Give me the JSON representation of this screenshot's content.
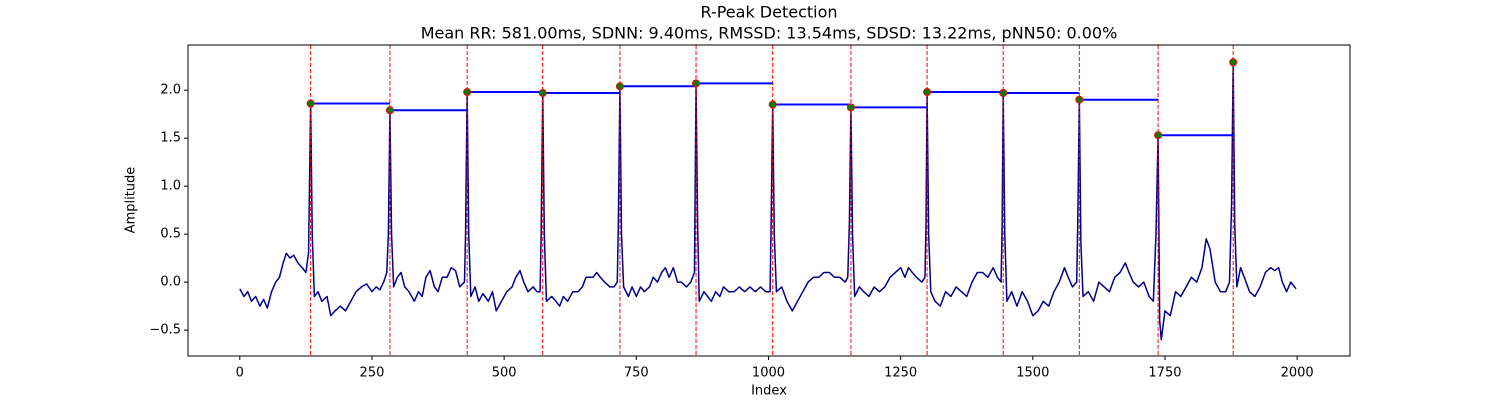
{
  "chart_data": {
    "type": "line",
    "title": "R-Peak Detection",
    "subtitle": "Mean RR: 581.00ms, SDNN: 9.40ms, RMSSD: 13.54ms, SDSD: 13.22ms, pNN50: 0.00%",
    "x_label": "Index",
    "y_label": "Amplitude",
    "xlim": [
      -98,
      2100
    ],
    "ylim": [
      -0.77,
      2.47
    ],
    "xticks": [
      0,
      250,
      500,
      750,
      1000,
      1250,
      1500,
      1750,
      2000
    ],
    "yticks": [
      {
        "value": -0.5,
        "label": "−0.5"
      },
      {
        "value": 0,
        "label": "0.0"
      },
      0.5,
      {
        "value": 1,
        "label": "1.0"
      },
      1.5,
      {
        "value": 2,
        "label": "2.0"
      }
    ],
    "series": [
      {
        "color": "#00008b",
        "x": [
          0,
          8,
          15,
          22,
          30,
          38,
          45,
          52,
          60,
          68,
          75,
          82,
          88,
          95,
          102,
          110,
          118,
          125,
          130,
          134,
          137,
          141,
          148,
          155,
          165,
          172,
          180,
          190,
          200,
          210,
          220,
          230,
          240,
          250,
          258,
          265,
          272,
          278,
          281,
          284,
          287,
          291,
          298,
          305,
          312,
          320,
          330,
          338,
          345,
          352,
          360,
          368,
          375,
          383,
          392,
          400,
          408,
          416,
          425,
          427,
          430,
          433,
          437,
          445,
          452,
          460,
          470,
          478,
          485,
          495,
          505,
          515,
          522,
          530,
          537,
          545,
          555,
          562,
          568,
          570,
          573,
          576,
          580,
          590,
          598,
          605,
          612,
          620,
          630,
          640,
          648,
          655,
          662,
          668,
          675,
          682,
          690,
          700,
          708,
          714,
          716,
          719,
          722,
          726,
          735,
          742,
          750,
          758,
          765,
          775,
          782,
          790,
          798,
          805,
          812,
          820,
          828,
          835,
          845,
          853,
          860,
          863,
          866,
          869,
          878,
          885,
          892,
          900,
          908,
          915,
          925,
          935,
          945,
          955,
          965,
          975,
          985,
          995,
          1003,
          1005,
          1008,
          1011,
          1015,
          1025,
          1035,
          1045,
          1055,
          1065,
          1075,
          1085,
          1095,
          1105,
          1115,
          1125,
          1135,
          1145,
          1150,
          1153,
          1156,
          1159,
          1163,
          1172,
          1180,
          1190,
          1200,
          1210,
          1220,
          1230,
          1240,
          1250,
          1258,
          1265,
          1272,
          1280,
          1290,
          1296,
          1298,
          1300,
          1303,
          1307,
          1315,
          1325,
          1335,
          1345,
          1355,
          1365,
          1375,
          1385,
          1395,
          1405,
          1415,
          1425,
          1433,
          1440,
          1442,
          1444,
          1447,
          1451,
          1460,
          1470,
          1480,
          1490,
          1500,
          1510,
          1520,
          1530,
          1540,
          1550,
          1560,
          1567,
          1575,
          1583,
          1585,
          1588,
          1591,
          1595,
          1605,
          1615,
          1625,
          1635,
          1645,
          1655,
          1665,
          1675,
          1682,
          1690,
          1700,
          1710,
          1720,
          1728,
          1733,
          1737,
          1740,
          1743,
          1750,
          1760,
          1770,
          1780,
          1790,
          1800,
          1810,
          1820,
          1828,
          1835,
          1845,
          1855,
          1865,
          1872,
          1876,
          1879,
          1882,
          1886,
          1893,
          1900,
          1910,
          1920,
          1930,
          1940,
          1950,
          1958,
          1965,
          1972,
          1980,
          1988,
          1995,
          1998
        ],
        "values": [
          -0.07,
          -0.15,
          -0.1,
          -0.2,
          -0.15,
          -0.25,
          -0.18,
          -0.27,
          -0.1,
          0.0,
          0.05,
          0.2,
          0.3,
          0.25,
          0.28,
          0.2,
          0.15,
          0.1,
          0.3,
          1.86,
          0.5,
          -0.15,
          -0.1,
          -0.2,
          -0.15,
          -0.35,
          -0.3,
          -0.25,
          -0.3,
          -0.2,
          -0.1,
          -0.05,
          -0.02,
          -0.1,
          -0.05,
          -0.08,
          0.0,
          0.1,
          0.5,
          1.79,
          0.5,
          -0.05,
          0.05,
          0.1,
          -0.05,
          -0.1,
          -0.2,
          -0.1,
          -0.15,
          0.05,
          0.12,
          -0.05,
          -0.1,
          0.05,
          0.05,
          0.15,
          0.12,
          -0.05,
          0.0,
          0.5,
          1.98,
          0.5,
          -0.15,
          -0.05,
          -0.2,
          -0.12,
          -0.2,
          -0.1,
          -0.3,
          -0.2,
          -0.1,
          -0.05,
          0.05,
          0.12,
          0.0,
          -0.1,
          -0.05,
          -0.1,
          -0.1,
          0.5,
          1.97,
          0.5,
          -0.2,
          -0.15,
          -0.2,
          -0.25,
          -0.15,
          -0.2,
          -0.1,
          -0.1,
          -0.05,
          0.05,
          0.05,
          0.05,
          0.1,
          0.05,
          0.0,
          -0.05,
          -0.05,
          0.0,
          0.6,
          2.04,
          0.5,
          -0.05,
          -0.15,
          -0.05,
          -0.15,
          -0.05,
          -0.1,
          -0.05,
          0.05,
          0.0,
          0.1,
          0.15,
          0.05,
          0.15,
          0.0,
          0.0,
          -0.05,
          0.0,
          0.1,
          2.07,
          0.6,
          -0.2,
          -0.1,
          -0.15,
          -0.2,
          -0.1,
          -0.15,
          -0.05,
          -0.1,
          -0.1,
          -0.05,
          -0.1,
          -0.05,
          -0.1,
          -0.05,
          -0.1,
          -0.1,
          0.6,
          1.85,
          0.5,
          -0.1,
          -0.05,
          -0.2,
          -0.3,
          -0.2,
          -0.1,
          0.0,
          0.05,
          0.05,
          0.1,
          0.1,
          0.05,
          0.05,
          0.0,
          0.05,
          0.6,
          1.82,
          0.5,
          -0.15,
          -0.05,
          -0.1,
          -0.15,
          -0.05,
          -0.1,
          -0.05,
          0.05,
          0.1,
          0.15,
          0.05,
          0.15,
          0.1,
          0.05,
          0.0,
          0.05,
          0.6,
          1.98,
          0.5,
          -0.1,
          -0.2,
          -0.25,
          -0.1,
          -0.15,
          -0.05,
          -0.1,
          -0.15,
          0.0,
          0.1,
          0.1,
          0.05,
          0.15,
          0.05,
          0.0,
          0.6,
          1.97,
          0.5,
          -0.2,
          -0.1,
          -0.25,
          -0.1,
          -0.2,
          -0.35,
          -0.3,
          -0.2,
          -0.25,
          -0.1,
          0.0,
          0.15,
          0.05,
          -0.05,
          0.0,
          0.6,
          1.9,
          0.4,
          -0.15,
          -0.1,
          -0.2,
          0.0,
          -0.05,
          -0.1,
          0.05,
          0.1,
          0.2,
          0.1,
          0.0,
          -0.05,
          0.0,
          -0.15,
          -0.2,
          0.5,
          1.53,
          -0.4,
          -0.6,
          -0.3,
          -0.35,
          -0.1,
          -0.15,
          -0.05,
          0.05,
          0.0,
          0.15,
          0.45,
          0.35,
          0.0,
          -0.1,
          -0.1,
          0.0,
          0.8,
          2.29,
          0.6,
          -0.05,
          0.15,
          0.05,
          -0.1,
          -0.15,
          -0.05,
          0.1,
          0.15,
          0.12,
          0.15,
          0.0,
          -0.1,
          0.0,
          -0.05,
          -0.07
        ]
      }
    ],
    "peaks": {
      "color": "#008000",
      "edge_color": "#ff0000",
      "x": [
        134,
        284,
        430,
        573,
        719,
        863,
        1008,
        1156,
        1300,
        1444,
        1588,
        1737,
        1879
      ],
      "values": [
        1.86,
        1.79,
        1.98,
        1.97,
        2.04,
        2.07,
        1.85,
        1.82,
        1.98,
        1.97,
        1.9,
        1.53,
        2.29
      ]
    },
    "peak_line_color": "#ff0000",
    "rr_line_color": "#0000ff"
  }
}
